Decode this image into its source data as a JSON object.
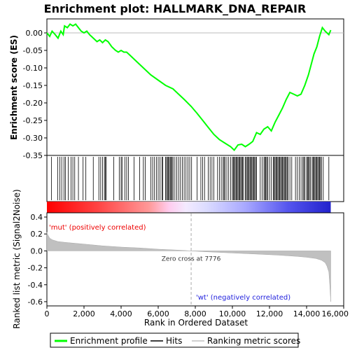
{
  "chart_data": {
    "type": "line",
    "title": "Enrichment plot: HALLMARK_DNA_REPAIR",
    "top_panel": {
      "ylabel": "Enrichment score (ES)",
      "ylim": [
        -0.35,
        0.04
      ],
      "yticks": [
        0.0,
        -0.05,
        -0.1,
        -0.15,
        -0.2,
        -0.25,
        -0.3,
        -0.35
      ],
      "ytick_labels": [
        "0.00",
        "-0.05",
        "-0.10",
        "-0.15",
        "-0.20",
        "-0.25",
        "-0.30",
        "-0.35"
      ],
      "series": [
        {
          "name": "Enrichment profile",
          "color": "#00ff00",
          "x": [
            0,
            150,
            280,
            450,
            600,
            750,
            880,
            950,
            1100,
            1250,
            1400,
            1550,
            1700,
            1850,
            2000,
            2150,
            2300,
            2500,
            2700,
            2850,
            3000,
            3150,
            3300,
            3500,
            3700,
            3850,
            4000,
            4150,
            4300,
            4500,
            4800,
            5200,
            5600,
            6000,
            6400,
            6800,
            7100,
            7400,
            7776,
            8100,
            8400,
            8700,
            9000,
            9300,
            9600,
            9900,
            10100,
            10300,
            10500,
            10700,
            10900,
            11100,
            11300,
            11500,
            11700,
            11900,
            12100,
            12300,
            12500,
            12700,
            12900,
            13100,
            13300,
            13500,
            13700,
            13900,
            14100,
            14250,
            14400,
            14550,
            14700,
            14850,
            15000,
            15200,
            15300
          ],
          "y": [
            0.0,
            -0.01,
            0.005,
            -0.005,
            -0.015,
            0.005,
            -0.005,
            0.02,
            0.015,
            0.025,
            0.02,
            0.025,
            0.015,
            0.005,
            0.0,
            0.005,
            -0.005,
            -0.015,
            -0.025,
            -0.02,
            -0.028,
            -0.02,
            -0.025,
            -0.04,
            -0.05,
            -0.055,
            -0.05,
            -0.055,
            -0.055,
            -0.065,
            -0.08,
            -0.1,
            -0.12,
            -0.135,
            -0.15,
            -0.16,
            -0.175,
            -0.19,
            -0.21,
            -0.23,
            -0.25,
            -0.27,
            -0.29,
            -0.305,
            -0.315,
            -0.325,
            -0.335,
            -0.32,
            -0.318,
            -0.325,
            -0.318,
            -0.31,
            -0.285,
            -0.29,
            -0.275,
            -0.268,
            -0.28,
            -0.255,
            -0.235,
            -0.215,
            -0.19,
            -0.17,
            -0.175,
            -0.18,
            -0.175,
            -0.15,
            -0.12,
            -0.09,
            -0.06,
            -0.04,
            -0.01,
            0.015,
            0.005,
            -0.005,
            0.008
          ]
        }
      ]
    },
    "hits": {
      "name": "Hits",
      "color": "#000000",
      "positions": [
        250,
        580,
        700,
        800,
        920,
        1000,
        1150,
        1300,
        1400,
        1500,
        1700,
        1950,
        2100,
        2500,
        2800,
        2900,
        3000,
        3100,
        3150,
        3200,
        3600,
        3900,
        4000,
        4050,
        4200,
        4300,
        4400,
        4700,
        5000,
        5200,
        5300,
        5600,
        5700,
        5800,
        5900,
        6000,
        6100,
        6200,
        6250,
        6400,
        6450,
        6500,
        6550,
        6600,
        6650,
        6700,
        6750,
        6800,
        6900,
        7000,
        7100,
        7200,
        7300,
        7400,
        7500,
        7600,
        7700,
        7800,
        8100,
        8300,
        8400,
        8500,
        8700,
        8800,
        8900,
        9000,
        9200,
        9300,
        9400,
        9500,
        9550,
        9600,
        9700,
        9800,
        9900,
        10000,
        10050,
        10100,
        10150,
        10200,
        10250,
        10300,
        10350,
        10400,
        10450,
        10500,
        10550,
        10600,
        10700,
        10750,
        10800,
        10850,
        10900,
        10950,
        11000,
        11050,
        11100,
        11150,
        11200,
        11250,
        11300,
        11500,
        11600,
        11700,
        11750,
        11800,
        11850,
        11900,
        12000,
        12100,
        12200,
        12250,
        12300,
        12350,
        12400,
        12450,
        12500,
        12550,
        12600,
        12650,
        12700,
        12750,
        12800,
        12850,
        12900,
        12950,
        13000,
        13100,
        13200,
        13400,
        13500,
        13600,
        13700,
        13800,
        13850,
        13900,
        14000,
        14050,
        14100,
        14150,
        14200,
        14300,
        14350,
        14400,
        14450,
        14500,
        14550,
        14600,
        14650,
        14700,
        14750,
        14800,
        14900,
        15200
      ]
    },
    "bottom_panel": {
      "ylabel": "Ranked list metric (Signal2Noise)",
      "xlabel": "Rank in Ordered Dataset",
      "ylim": [
        -0.65,
        0.45
      ],
      "yticks": [
        0.4,
        0.2,
        0.0,
        -0.2,
        -0.4,
        -0.6
      ],
      "ytick_labels": [
        "0.4",
        "0.2",
        "0.0",
        "-0.2",
        "-0.4",
        "-0.6"
      ],
      "metric_x": [
        0,
        50,
        150,
        300,
        600,
        1000,
        2000,
        3000,
        4000,
        5000,
        6000,
        7000,
        7776,
        8500,
        9500,
        10500,
        11500,
        12500,
        13500,
        14000,
        14500,
        14800,
        15000,
        15100,
        15200,
        15250,
        15300
      ],
      "metric_y": [
        0.22,
        0.19,
        0.15,
        0.13,
        0.11,
        0.1,
        0.08,
        0.06,
        0.045,
        0.035,
        0.02,
        0.01,
        0.0,
        -0.01,
        -0.02,
        -0.03,
        -0.04,
        -0.05,
        -0.065,
        -0.075,
        -0.09,
        -0.11,
        -0.14,
        -0.18,
        -0.25,
        -0.4,
        -0.6
      ],
      "zero_cross_label": "Zero cross at 7776",
      "zero_cross": 7776,
      "pos_label": "'mut' (positively correlated)",
      "neg_label": "'wt' (negatively correlated)"
    },
    "x_axis": {
      "xlim": [
        0,
        16000
      ],
      "xticks": [
        0,
        2000,
        4000,
        6000,
        8000,
        10000,
        12000,
        14000,
        16000
      ],
      "xtick_labels": [
        "0",
        "2,000",
        "4,000",
        "6,000",
        "8,000",
        "10,000",
        "12,000",
        "14,000",
        "16,000"
      ],
      "n_genes": 15300
    },
    "legend": {
      "placement": "bottom",
      "entries": [
        {
          "label": "Enrichment profile",
          "color": "#00ff00"
        },
        {
          "label": "Hits",
          "color": "#000000"
        },
        {
          "label": "Ranking metric scores",
          "color": "#c0c0c0"
        }
      ]
    }
  }
}
